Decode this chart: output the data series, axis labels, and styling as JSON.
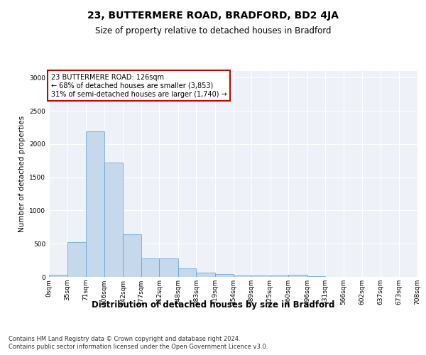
{
  "title1": "23, BUTTERMERE ROAD, BRADFORD, BD2 4JA",
  "title2": "Size of property relative to detached houses in Bradford",
  "xlabel": "Distribution of detached houses by size in Bradford",
  "ylabel": "Number of detached properties",
  "annotation_line1": "23 BUTTERMERE ROAD: 126sqm",
  "annotation_line2": "← 68% of detached houses are smaller (3,853)",
  "annotation_line3": "31% of semi-detached houses are larger (1,740) →",
  "property_size": 126,
  "bin_edges": [
    0,
    35,
    71,
    106,
    142,
    177,
    212,
    248,
    283,
    319,
    354,
    389,
    425,
    460,
    496,
    531,
    566,
    602,
    637,
    673,
    708
  ],
  "bar_values": [
    30,
    520,
    2190,
    1720,
    640,
    275,
    275,
    130,
    65,
    40,
    25,
    20,
    20,
    30,
    15,
    5,
    3,
    2,
    1,
    1
  ],
  "bar_color": "#c5d8ec",
  "bar_edgecolor": "#5b9bd5",
  "annotation_box_color": "#ffffff",
  "annotation_box_edgecolor": "#cc0000",
  "background_color": "#eef2f8",
  "grid_color": "#ffffff",
  "ylim": [
    0,
    3100
  ],
  "yticks": [
    0,
    500,
    1000,
    1500,
    2000,
    2500,
    3000
  ],
  "footer_line1": "Contains HM Land Registry data © Crown copyright and database right 2024.",
  "footer_line2": "Contains public sector information licensed under the Open Government Licence v3.0.",
  "title1_fontsize": 10,
  "title2_fontsize": 8.5,
  "xlabel_fontsize": 8.5,
  "ylabel_fontsize": 7.5,
  "tick_fontsize": 6.5,
  "annotation_fontsize": 7,
  "footer_fontsize": 6
}
